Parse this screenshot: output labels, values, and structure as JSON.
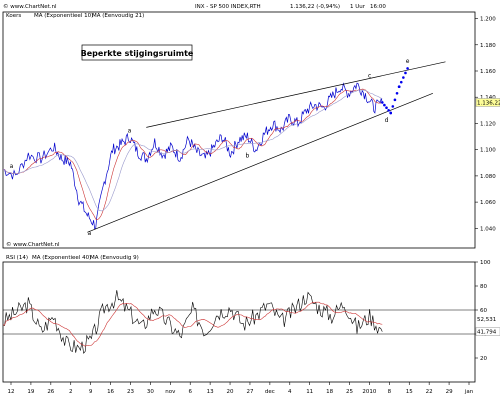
{
  "header": {
    "title": "INX - SP 500 INDEX,RTH",
    "last_value": "1.136,22",
    "change": "(-0,94%)",
    "interval": "1 Uur",
    "time": "16:00",
    "corner_top": "© www.ChartNet.nl",
    "corner_bottom": "© www.ChartNet.nl"
  },
  "legend_main": [
    "Koers",
    "MA (Exponentieel 10)",
    "MA (Eenvoudig 21)"
  ],
  "legend_rsi": [
    "RSI (14)",
    "MA (Exponentieel 40)",
    "MA (Eenvoudig 9)"
  ],
  "annotation_box": "Beperkte stijgingsruimte",
  "wave_labels": [
    "a",
    "b",
    "c",
    "d",
    "e"
  ],
  "colors": {
    "price": "#0000cc",
    "ma_fast": "#cc3333",
    "ma_slow": "#9999cc",
    "rsi": "#000000",
    "dots": "#0000ee",
    "trend": "#000000"
  },
  "chart_data": [
    {
      "type": "line",
      "title": "INX - SP 500 INDEX,RTH",
      "ylim": [
        1.025,
        1.205
      ],
      "y_ticks": [
        "1.200",
        "1.180",
        "1.160",
        "1.140",
        "1.120",
        "1.100",
        "1.080",
        "1.060",
        "1.040"
      ],
      "y_tick_values": [
        1.2,
        1.18,
        1.16,
        1.14,
        1.12,
        1.1,
        1.08,
        1.06,
        1.04
      ],
      "last_label": "1.136,22",
      "series": [
        {
          "name": "Koers",
          "x": [
            0,
            3,
            6,
            9,
            12,
            14,
            16,
            18,
            20,
            22,
            24,
            26,
            28,
            30,
            32,
            34,
            36,
            38,
            40,
            42,
            44,
            46,
            48,
            50,
            52,
            54,
            56,
            58,
            60,
            62,
            64,
            66,
            68,
            70,
            72,
            74,
            76,
            78,
            80,
            82,
            84,
            86,
            88,
            90
          ],
          "y": [
            1.085,
            1.08,
            1.096,
            1.093,
            1.102,
            1.093,
            1.09,
            1.062,
            1.05,
            1.042,
            1.075,
            1.1,
            1.104,
            1.11,
            1.098,
            1.093,
            1.106,
            1.096,
            1.102,
            1.094,
            1.108,
            1.098,
            1.093,
            1.102,
            1.11,
            1.097,
            1.108,
            1.11,
            1.1,
            1.112,
            1.12,
            1.115,
            1.124,
            1.12,
            1.13,
            1.134,
            1.132,
            1.14,
            1.148,
            1.143,
            1.15,
            1.142,
            1.132,
            1.136
          ]
        }
      ],
      "trendlines": [
        {
          "x": [
            20,
            102
          ],
          "y": [
            1.037,
            1.143
          ]
        },
        {
          "x": [
            34,
            105
          ],
          "y": [
            1.117,
            1.167
          ]
        }
      ],
      "projection": {
        "x": [
          90,
          92,
          94,
          96
        ],
        "y": [
          1.136,
          1.128,
          1.148,
          1.162
        ]
      },
      "x_ticks": [
        "12",
        "19",
        "26",
        "2",
        "9",
        "16",
        "23",
        "30",
        "nov",
        "6",
        "13",
        "20",
        "27",
        "dec",
        "4",
        "11",
        "18",
        "25",
        "2010",
        "8",
        "15",
        "22",
        "29",
        "jan"
      ]
    },
    {
      "type": "line",
      "title": "RSI (14)",
      "ylim": [
        0,
        100
      ],
      "y_ticks": [
        "100",
        "80",
        "60",
        "40",
        "20"
      ],
      "y_tick_values": [
        100,
        80,
        60,
        40,
        20
      ],
      "last_label": "41,794",
      "last_label_2": "52,531",
      "hlines": [
        60,
        40
      ],
      "series": [
        {
          "name": "RSI (14)",
          "x": [
            0,
            3,
            6,
            9,
            12,
            15,
            18,
            21,
            24,
            27,
            30,
            33,
            36,
            39,
            42,
            45,
            48,
            51,
            54,
            57,
            60,
            63,
            66,
            69,
            72,
            75,
            78,
            81,
            84,
            87,
            90
          ],
          "y": [
            50,
            58,
            65,
            42,
            55,
            32,
            28,
            35,
            62,
            70,
            58,
            45,
            62,
            50,
            38,
            60,
            42,
            58,
            62,
            48,
            55,
            65,
            50,
            60,
            72,
            62,
            55,
            66,
            45,
            55,
            42
          ]
        }
      ]
    }
  ]
}
